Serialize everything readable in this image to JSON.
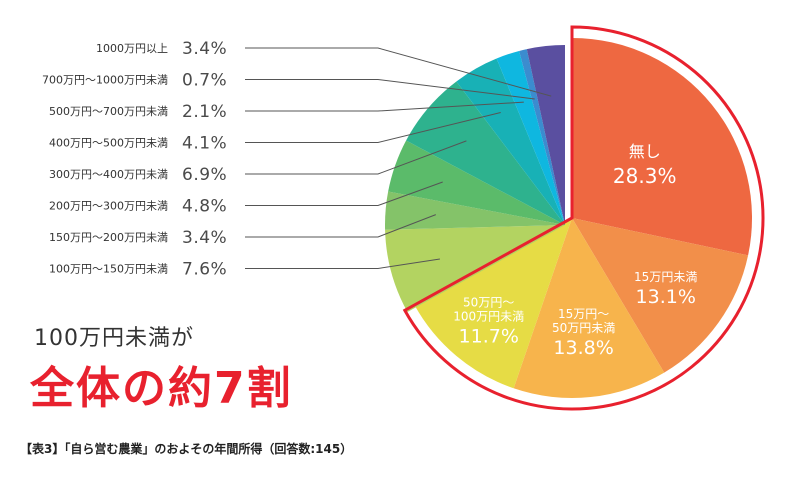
{
  "headline": {
    "sub": "100万円未満が",
    "main": "全体の約7割"
  },
  "caption": "【表3】「自ら営む農業」のおよその年間所得（回答数:145）",
  "colors": {
    "accent_red": "#e8212e",
    "leader_line": "#555555"
  },
  "chart_data": {
    "type": "pie",
    "unit": "%",
    "start": "12 o'clock, clockwise",
    "highlight": [
      "無し",
      "15万円未満",
      "15万円〜50万円未満",
      "50万円〜100万円未満"
    ],
    "slices": [
      {
        "label": "無し",
        "value": 28.3,
        "value_label": "28.3%",
        "color": "#ee6841",
        "label_lines": [
          "無し"
        ]
      },
      {
        "label": "15万円未満",
        "value": 13.1,
        "value_label": "13.1%",
        "color": "#f28f4a",
        "label_lines": [
          "15万円未満"
        ]
      },
      {
        "label": "15万円〜50万円未満",
        "value": 13.8,
        "value_label": "13.8%",
        "color": "#f7b44c",
        "label_lines": [
          "15万円〜",
          "50万円未満"
        ]
      },
      {
        "label": "50万円〜100万円未満",
        "value": 11.7,
        "value_label": "11.7%",
        "color": "#e6dc45",
        "label_lines": [
          "50万円〜",
          "100万円未満"
        ]
      },
      {
        "label": "100万円〜150万円未満",
        "value": 7.6,
        "value_label": "7.6%",
        "color": "#b3d361"
      },
      {
        "label": "150万円〜200万円未満",
        "value": 3.4,
        "value_label": "3.4%",
        "color": "#84c369"
      },
      {
        "label": "200万円〜300万円未満",
        "value": 4.8,
        "value_label": "4.8%",
        "color": "#5bbb6a"
      },
      {
        "label": "300万円〜400万円未満",
        "value": 6.9,
        "value_label": "6.9%",
        "color": "#2eb28e"
      },
      {
        "label": "400万円〜500万円未満",
        "value": 4.1,
        "value_label": "4.1%",
        "color": "#18b1b6"
      },
      {
        "label": "500万円〜700万円未満",
        "value": 2.1,
        "value_label": "2.1%",
        "color": "#0fb7e0"
      },
      {
        "label": "700万円〜1000万円未満",
        "value": 0.7,
        "value_label": "0.7%",
        "color": "#3b8ccf"
      },
      {
        "label": "1000万円以上",
        "value": 3.4,
        "value_label": "3.4%",
        "color": "#5a4fa0"
      }
    ]
  }
}
